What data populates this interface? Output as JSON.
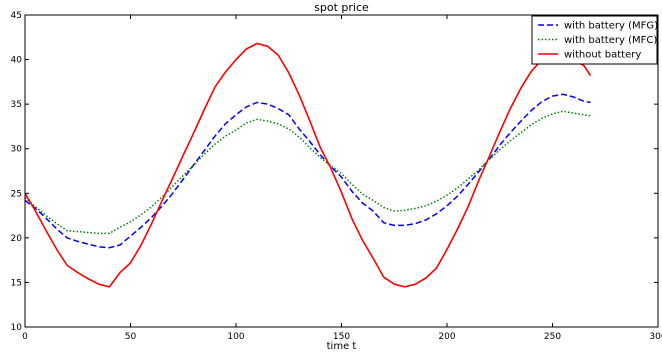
{
  "chart_data": {
    "type": "line",
    "title": "spot price",
    "xlabel": "time t",
    "ylabel": "",
    "xlim": [
      0,
      300
    ],
    "ylim": [
      10,
      45
    ],
    "xticks": [
      0,
      50,
      100,
      150,
      200,
      250,
      300
    ],
    "yticks": [
      10,
      15,
      20,
      25,
      30,
      35,
      40,
      45
    ],
    "grid": false,
    "legend_position": "top-right",
    "series": [
      {
        "name": "with battery (MFG)",
        "color": "#0000ff",
        "style": "dashed",
        "x": [
          0,
          5,
          10,
          15,
          20,
          25,
          30,
          35,
          40,
          45,
          50,
          55,
          60,
          65,
          70,
          75,
          80,
          85,
          90,
          95,
          100,
          105,
          110,
          115,
          120,
          125,
          130,
          135,
          140,
          145,
          150,
          155,
          160,
          165,
          170,
          175,
          180,
          185,
          190,
          195,
          200,
          205,
          210,
          215,
          220,
          225,
          230,
          235,
          240,
          245,
          250,
          255,
          260,
          265,
          268
        ],
        "y": [
          24.2,
          23.3,
          22.2,
          21.0,
          20.0,
          19.6,
          19.3,
          19.0,
          18.9,
          19.2,
          20.2,
          21.2,
          22.3,
          23.6,
          25.0,
          26.6,
          28.2,
          29.8,
          31.4,
          32.8,
          33.8,
          34.7,
          35.2,
          35.0,
          34.5,
          33.8,
          32.2,
          30.8,
          29.3,
          28.0,
          26.8,
          25.2,
          23.9,
          23.0,
          21.7,
          21.4,
          21.4,
          21.6,
          22.0,
          22.7,
          23.6,
          24.7,
          26.0,
          27.4,
          28.8,
          30.4,
          31.8,
          33.1,
          34.3,
          35.3,
          35.9,
          36.1,
          35.8,
          35.3,
          35.2
        ]
      },
      {
        "name": "with battery (MFC)",
        "color": "#008000",
        "style": "dotted",
        "x": [
          0,
          5,
          10,
          15,
          20,
          25,
          30,
          35,
          40,
          45,
          50,
          55,
          60,
          65,
          70,
          75,
          80,
          85,
          90,
          95,
          100,
          105,
          110,
          115,
          120,
          125,
          130,
          135,
          140,
          145,
          150,
          155,
          160,
          165,
          170,
          175,
          180,
          185,
          190,
          195,
          200,
          205,
          210,
          215,
          220,
          225,
          230,
          235,
          240,
          245,
          250,
          255,
          260,
          265,
          268
        ],
        "y": [
          24.5,
          23.5,
          22.5,
          21.6,
          20.8,
          20.7,
          20.6,
          20.5,
          20.5,
          21.2,
          21.8,
          22.6,
          23.5,
          24.6,
          25.8,
          27.0,
          28.2,
          29.4,
          30.5,
          31.4,
          32.1,
          32.9,
          33.3,
          33.1,
          32.8,
          32.2,
          31.3,
          30.1,
          29.0,
          28.1,
          27.2,
          26.0,
          24.9,
          24.2,
          23.4,
          23.0,
          23.1,
          23.3,
          23.6,
          24.1,
          24.8,
          25.6,
          26.6,
          27.6,
          28.8,
          29.9,
          30.9,
          31.8,
          32.7,
          33.4,
          33.9,
          34.2,
          34.0,
          33.8,
          33.7
        ]
      },
      {
        "name": "without battery",
        "color": "#ff0000",
        "style": "solid",
        "x": [
          0,
          5,
          10,
          15,
          20,
          25,
          30,
          35,
          40,
          45,
          50,
          55,
          60,
          65,
          70,
          75,
          80,
          85,
          90,
          95,
          100,
          105,
          110,
          115,
          120,
          125,
          130,
          135,
          140,
          145,
          150,
          155,
          160,
          165,
          170,
          175,
          180,
          185,
          190,
          195,
          200,
          205,
          210,
          215,
          220,
          225,
          230,
          235,
          240,
          245,
          250,
          255,
          260,
          265,
          268
        ],
        "y": [
          25.0,
          23.0,
          20.8,
          18.7,
          16.9,
          16.1,
          15.4,
          14.8,
          14.5,
          16.1,
          17.2,
          19.2,
          21.6,
          24.2,
          26.7,
          29.3,
          31.8,
          34.4,
          36.9,
          38.6,
          40.0,
          41.2,
          41.8,
          41.5,
          40.5,
          38.5,
          36.0,
          33.1,
          30.1,
          27.8,
          25.1,
          22.1,
          19.7,
          17.7,
          15.6,
          14.8,
          14.5,
          14.8,
          15.5,
          16.6,
          18.7,
          21.0,
          23.5,
          26.4,
          29.1,
          31.9,
          34.5,
          36.8,
          38.7,
          40.0,
          40.6,
          40.5,
          40.0,
          39.3,
          38.2
        ]
      }
    ]
  }
}
